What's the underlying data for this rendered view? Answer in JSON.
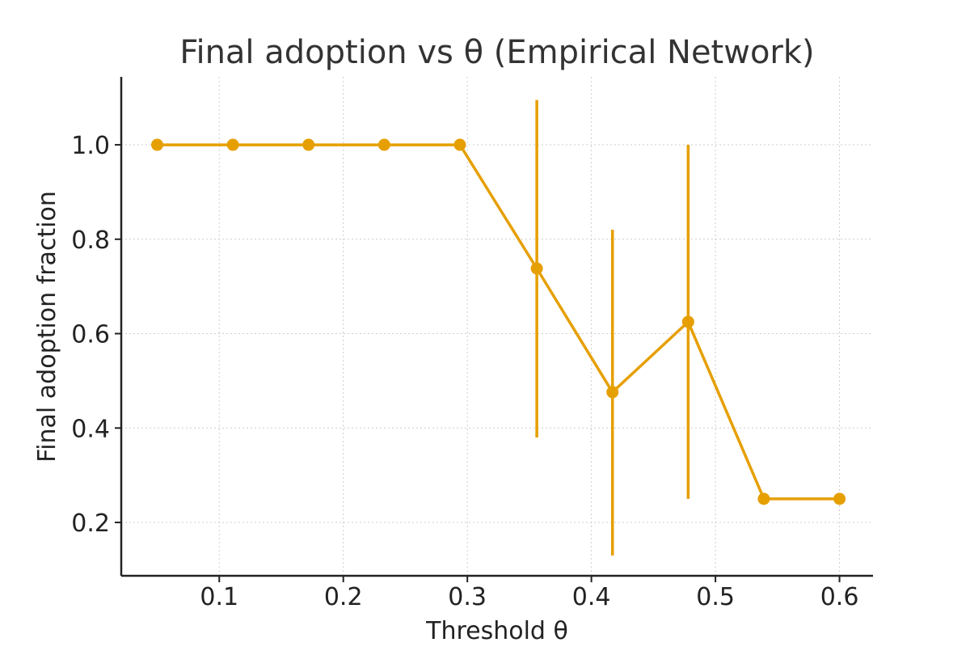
{
  "chart_data": {
    "type": "line",
    "title": "Final adoption vs θ (Empirical Network)",
    "xlabel": "Threshold θ",
    "ylabel": "Final adoption fraction",
    "xlim": [
      0.021,
      0.627
    ],
    "ylim": [
      0.087,
      1.144
    ],
    "x_ticks": [
      0.1,
      0.2,
      0.3,
      0.4,
      0.5,
      0.6
    ],
    "x_tick_labels": [
      "0.1",
      "0.2",
      "0.3",
      "0.4",
      "0.5",
      "0.6"
    ],
    "y_ticks": [
      0.2,
      0.4,
      0.6,
      0.8,
      1.0
    ],
    "y_tick_labels": [
      "0.2",
      "0.4",
      "0.6",
      "0.8",
      "1.0"
    ],
    "grid": true,
    "grid_style": "dotted",
    "color": "#E69F00",
    "series": [
      {
        "x": [
          0.05,
          0.111,
          0.172,
          0.233,
          0.294,
          0.356,
          0.417,
          0.478,
          0.539,
          0.6
        ],
        "y": [
          1.0,
          1.0,
          1.0,
          1.0,
          1.0,
          0.738,
          0.476,
          0.625,
          0.25,
          0.25
        ],
        "y_err_low": [
          1.0,
          1.0,
          1.0,
          1.0,
          1.0,
          0.38,
          0.13,
          0.25,
          0.25,
          0.25
        ],
        "y_err_high": [
          1.0,
          1.0,
          1.0,
          1.0,
          1.0,
          1.095,
          0.82,
          1.0,
          0.25,
          0.25
        ]
      }
    ]
  }
}
